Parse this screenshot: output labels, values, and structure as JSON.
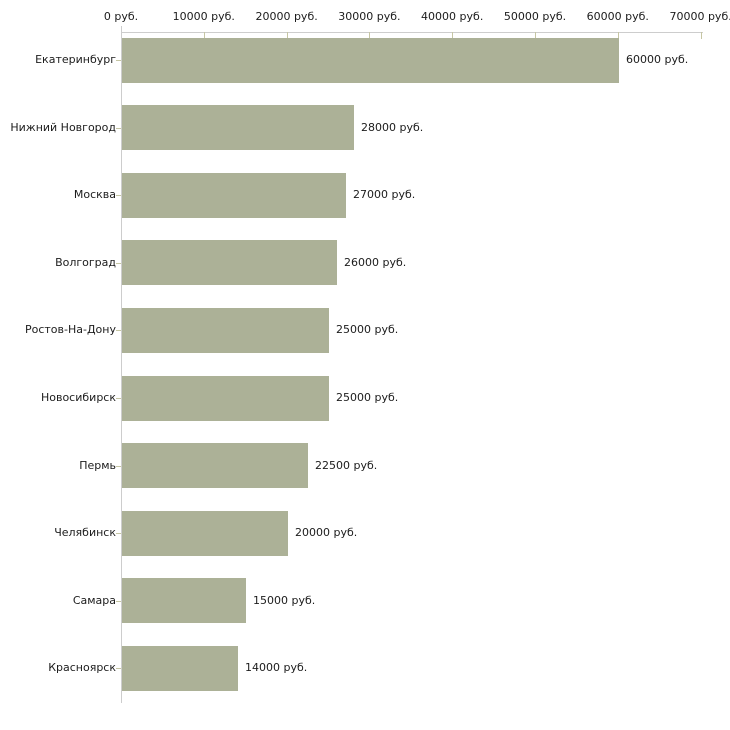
{
  "chart_data": {
    "type": "bar",
    "orientation": "horizontal",
    "title": "",
    "categories": [
      "Екатеринбург",
      "Нижний Новгород",
      "Москва",
      "Волгоград",
      "Ростов-На-Дону",
      "Новосибирск",
      "Пермь",
      "Челябинск",
      "Самара",
      "Красноярск"
    ],
    "values": [
      60000,
      28000,
      27000,
      26000,
      25000,
      25000,
      22500,
      20000,
      15000,
      14000
    ],
    "bar_value_labels": [
      "60000 руб.",
      "28000 руб.",
      "27000 руб.",
      "26000 руб.",
      "25000 руб.",
      "25000 руб.",
      "22500 руб.",
      "20000 руб.",
      "15000 руб.",
      "14000 руб."
    ],
    "x_ticks": [
      0,
      10000,
      20000,
      30000,
      40000,
      50000,
      60000,
      70000
    ],
    "x_tick_labels": [
      "0 руб.",
      "10000 руб.",
      "20000 руб.",
      "30000 руб.",
      "40000 руб.",
      "50000 руб.",
      "60000 руб.",
      "70000 руб."
    ],
    "xlim": [
      0,
      70000
    ],
    "unit": "руб.",
    "xlabel": "",
    "ylabel": "",
    "grid": false,
    "legend": false,
    "axis_position": "top",
    "colors": {
      "bar": "#acb197",
      "axis_line": "#cdcdcd",
      "tick": "#c6c6a4",
      "text": "#1c1c1c",
      "background": "#ffffff"
    }
  }
}
